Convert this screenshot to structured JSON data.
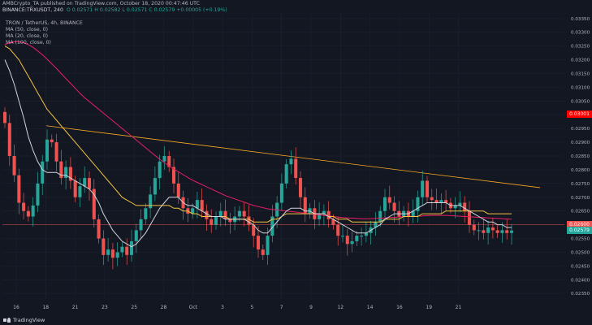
{
  "header": {
    "line1": "AMBCrypto_TA published on TradingView.com, October 18, 2020 00:47:46 UTC",
    "symbol": "BINANCE:TRXUSDT, 240",
    "ohlc": "O 0.02571  H 0.02582  L 0.02571  C 0.02579  +0.00005 (+0.19%)",
    "pair": "TRON / TetherUS, 4h, BINANCE",
    "ma50": "MA (50, close, 0)",
    "ma20": "MA (20, close, 0)",
    "ma100": "MA (100, close, 0)"
  },
  "footer": {
    "brand": "TradingView"
  },
  "colors": {
    "background": "#131722",
    "up": "#26a69a",
    "down": "#ef5350",
    "ma50": "#f5c242",
    "ma20": "#d1d4dc",
    "ma100": "#e91e63",
    "trendline": "#f9a825",
    "support": "#ef5350",
    "grid": "#1e2230"
  },
  "chart_data": {
    "type": "candlestick",
    "title": "TRON / TetherUS, 4h, BINANCE",
    "y_range": [
      0.0233,
      0.0337
    ],
    "y_ticks": [
      "0.03350",
      "0.03300",
      "0.03250",
      "0.03200",
      "0.03150",
      "0.03100",
      "0.03050",
      "0.03000",
      "0.02950",
      "0.02900",
      "0.02850",
      "0.02800",
      "0.02750",
      "0.02700",
      "0.02650",
      "0.02600",
      "0.02550",
      "0.02500",
      "0.02450",
      "0.02400",
      "0.02350"
    ],
    "x_ticks": [
      "16",
      "18",
      "21",
      "23",
      "25",
      "28",
      "Oct",
      "3",
      "5",
      "7",
      "9",
      "12",
      "14",
      "16",
      "19",
      "21"
    ],
    "price_labels": [
      {
        "value": 0.03001,
        "text": "0.03001",
        "color": "#ff0000"
      },
      {
        "value": 0.026,
        "text": "0.02600",
        "color": "#ef5350"
      },
      {
        "value": 0.02579,
        "text": "0.02579",
        "color": "#26a69a"
      }
    ],
    "support_level": 0.026,
    "trendline": [
      [
        0.0296,
        0.02735
      ]
    ],
    "closes": [
      0.0297,
      0.0285,
      0.0278,
      0.0268,
      0.0265,
      0.0263,
      0.0267,
      0.0275,
      0.0283,
      0.0291,
      0.029,
      0.0283,
      0.0277,
      0.0281,
      0.0276,
      0.027,
      0.0274,
      0.0277,
      0.0273,
      0.0262,
      0.0255,
      0.0249,
      0.0251,
      0.0248,
      0.025,
      0.0252,
      0.0249,
      0.0254,
      0.0258,
      0.0262,
      0.0266,
      0.0271,
      0.0277,
      0.0283,
      0.0285,
      0.0281,
      0.0275,
      0.027,
      0.0266,
      0.0264,
      0.0266,
      0.0269,
      0.0265,
      0.0262,
      0.026,
      0.0263,
      0.0265,
      0.0262,
      0.0261,
      0.0263,
      0.0265,
      0.0263,
      0.026,
      0.0256,
      0.0251,
      0.0249,
      0.0256,
      0.0263,
      0.0268,
      0.0275,
      0.0282,
      0.0284,
      0.0277,
      0.027,
      0.0264,
      0.0266,
      0.0262,
      0.0264,
      0.0265,
      0.0262,
      0.026,
      0.0256,
      0.0256,
      0.0253,
      0.0254,
      0.0256,
      0.0256,
      0.0257,
      0.0259,
      0.0261,
      0.0265,
      0.027,
      0.0268,
      0.0265,
      0.0263,
      0.0265,
      0.0263,
      0.0265,
      0.027,
      0.0276,
      0.027,
      0.0269,
      0.0268,
      0.0269,
      0.0268,
      0.0266,
      0.0267,
      0.0268,
      0.0265,
      0.026,
      0.0258,
      0.0258,
      0.0257,
      0.0259,
      0.0258,
      0.0257,
      0.0258,
      0.0257,
      0.02579
    ],
    "ma20": [
      0.032,
      0.0316,
      0.0311,
      0.0305,
      0.0299,
      0.0292,
      0.0287,
      0.0283,
      0.028,
      0.0279,
      0.0279,
      0.0279,
      0.0278,
      0.0278,
      0.0277,
      0.0276,
      0.0275,
      0.0274,
      0.0273,
      0.0271,
      0.0268,
      0.0264,
      0.0261,
      0.0258,
      0.0256,
      0.0254,
      0.0253,
      0.0252,
      0.0253,
      0.0255,
      0.0257,
      0.026,
      0.0263,
      0.0266,
      0.0268,
      0.027,
      0.027,
      0.027,
      0.0268,
      0.0267,
      0.0267,
      0.0266,
      0.0265,
      0.0264,
      0.0263,
      0.0263,
      0.0263,
      0.0262,
      0.0262,
      0.0262,
      0.0262,
      0.0262,
      0.0261,
      0.026,
      0.0258,
      0.0257,
      0.0257,
      0.0259,
      0.0261,
      0.0263,
      0.0265,
      0.0266,
      0.0266,
      0.0266,
      0.0265,
      0.0265,
      0.0264,
      0.0264,
      0.0264,
      0.0263,
      0.0262,
      0.0261,
      0.026,
      0.0259,
      0.0258,
      0.0257,
      0.0257,
      0.0257,
      0.0258,
      0.0259,
      0.026,
      0.0262,
      0.0263,
      0.0264,
      0.0264,
      0.0264,
      0.0264,
      0.0265,
      0.0266,
      0.0267,
      0.0268,
      0.0268,
      0.0268,
      0.0268,
      0.0268,
      0.0267,
      0.0267,
      0.0267,
      0.0266,
      0.0265,
      0.0264,
      0.0263,
      0.0262,
      0.0261,
      0.0261,
      0.026,
      0.026,
      0.0259,
      0.0259
    ],
    "ma50": [
      0.0325,
      0.0324,
      0.0322,
      0.032,
      0.0317,
      0.0314,
      0.0311,
      0.0308,
      0.0305,
      0.0302,
      0.03,
      0.0298,
      0.0296,
      0.0294,
      0.0292,
      0.029,
      0.0288,
      0.0286,
      0.0284,
      0.0282,
      0.028,
      0.0278,
      0.0276,
      0.0274,
      0.0272,
      0.027,
      0.0269,
      0.0268,
      0.0267,
      0.0267,
      0.0267,
      0.0267,
      0.0267,
      0.0267,
      0.0267,
      0.0267,
      0.0266,
      0.0266,
      0.0265,
      0.0265,
      0.0264,
      0.0264,
      0.0263,
      0.0263,
      0.0263,
      0.0263,
      0.0263,
      0.0263,
      0.0262,
      0.0262,
      0.0262,
      0.0262,
      0.0262,
      0.0261,
      0.0261,
      0.0261,
      0.0261,
      0.0262,
      0.0262,
      0.0263,
      0.0264,
      0.0264,
      0.0264,
      0.0264,
      0.0264,
      0.0264,
      0.0264,
      0.0264,
      0.0264,
      0.0263,
      0.0263,
      0.0262,
      0.0262,
      0.0262,
      0.0261,
      0.0261,
      0.0261,
      0.0261,
      0.0261,
      0.0261,
      0.0261,
      0.0262,
      0.0262,
      0.0262,
      0.0262,
      0.0263,
      0.0263,
      0.0263,
      0.0263,
      0.0264,
      0.0264,
      0.0264,
      0.0264,
      0.0264,
      0.0265,
      0.0265,
      0.0265,
      0.0265,
      0.0265,
      0.0265,
      0.0265,
      0.0265,
      0.0265,
      0.0264,
      0.0264,
      0.0264,
      0.0264,
      0.0264,
      0.0264
    ],
    "ma100": [
      0.03255,
      0.03262,
      0.03265,
      0.03265,
      0.03262,
      0.03255,
      0.03245,
      0.03232,
      0.03218,
      0.03202,
      0.03185,
      0.03168,
      0.0315,
      0.03132,
      0.03114,
      0.03096,
      0.03078,
      0.03062,
      0.03048,
      0.03034,
      0.0302,
      0.03006,
      0.02992,
      0.02978,
      0.02964,
      0.0295,
      0.02936,
      0.02922,
      0.02908,
      0.02894,
      0.0288,
      0.02866,
      0.02852,
      0.02838,
      0.02826,
      0.02814,
      0.02802,
      0.02792,
      0.02782,
      0.02772,
      0.02762,
      0.02754,
      0.02746,
      0.02738,
      0.0273,
      0.02722,
      0.02714,
      0.02706,
      0.027,
      0.02694,
      0.02688,
      0.02682,
      0.02676,
      0.0267,
      0.02666,
      0.02662,
      0.02658,
      0.02656,
      0.02654,
      0.02652,
      0.0265,
      0.02648,
      0.02646,
      0.02644,
      0.02642,
      0.0264,
      0.02638,
      0.02636,
      0.02634,
      0.02632,
      0.0263,
      0.02628,
      0.02626,
      0.02625,
      0.02624,
      0.02623,
      0.02622,
      0.02622,
      0.02622,
      0.02623,
      0.02624,
      0.02625,
      0.02626,
      0.02627,
      0.02628,
      0.02629,
      0.0263,
      0.0263,
      0.02631,
      0.02632,
      0.02633,
      0.02634,
      0.02634,
      0.02634,
      0.02634,
      0.02633,
      0.02632,
      0.02631,
      0.0263,
      0.02629,
      0.02628,
      0.02627,
      0.02626,
      0.02625,
      0.02624,
      0.02623,
      0.02622,
      0.02621,
      0.0262
    ]
  }
}
